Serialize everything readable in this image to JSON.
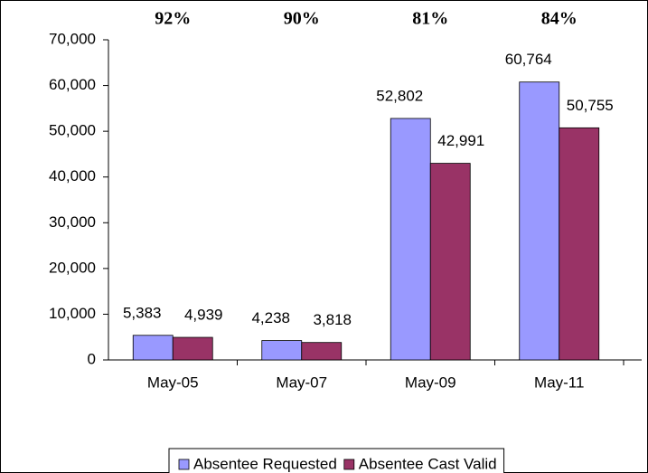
{
  "chart_data": {
    "type": "bar",
    "annotations": [
      "92%",
      "90%",
      "81%",
      "84%"
    ],
    "categories": [
      "May-05",
      "May-07",
      "May-09",
      "May-11"
    ],
    "series": [
      {
        "name": "Absentee Requested",
        "color": "#9999ff",
        "values": [
          5383,
          4238,
          52802,
          60764
        ],
        "value_labels": [
          "5,383",
          "4,238",
          "52,802",
          "60,764"
        ]
      },
      {
        "name": "Absentee Cast Valid",
        "color": "#993366",
        "values": [
          4939,
          3818,
          42991,
          50755
        ],
        "value_labels": [
          "4,939",
          "3,818",
          "42,991",
          "50,755"
        ]
      }
    ],
    "ylim": [
      0,
      70000
    ],
    "yticks": [
      0,
      {
        "value": 10000,
        "label": "10,000"
      },
      {
        "value": 20000,
        "label": "20,000"
      },
      {
        "value": 30000,
        "label": "30,000"
      },
      {
        "value": 40000,
        "label": "40,000"
      },
      {
        "value": 50000,
        "label": "50,000"
      },
      {
        "value": 60000,
        "label": "60,000"
      },
      {
        "value": 70000,
        "label": "70,000"
      }
    ],
    "legend": "bottom"
  }
}
